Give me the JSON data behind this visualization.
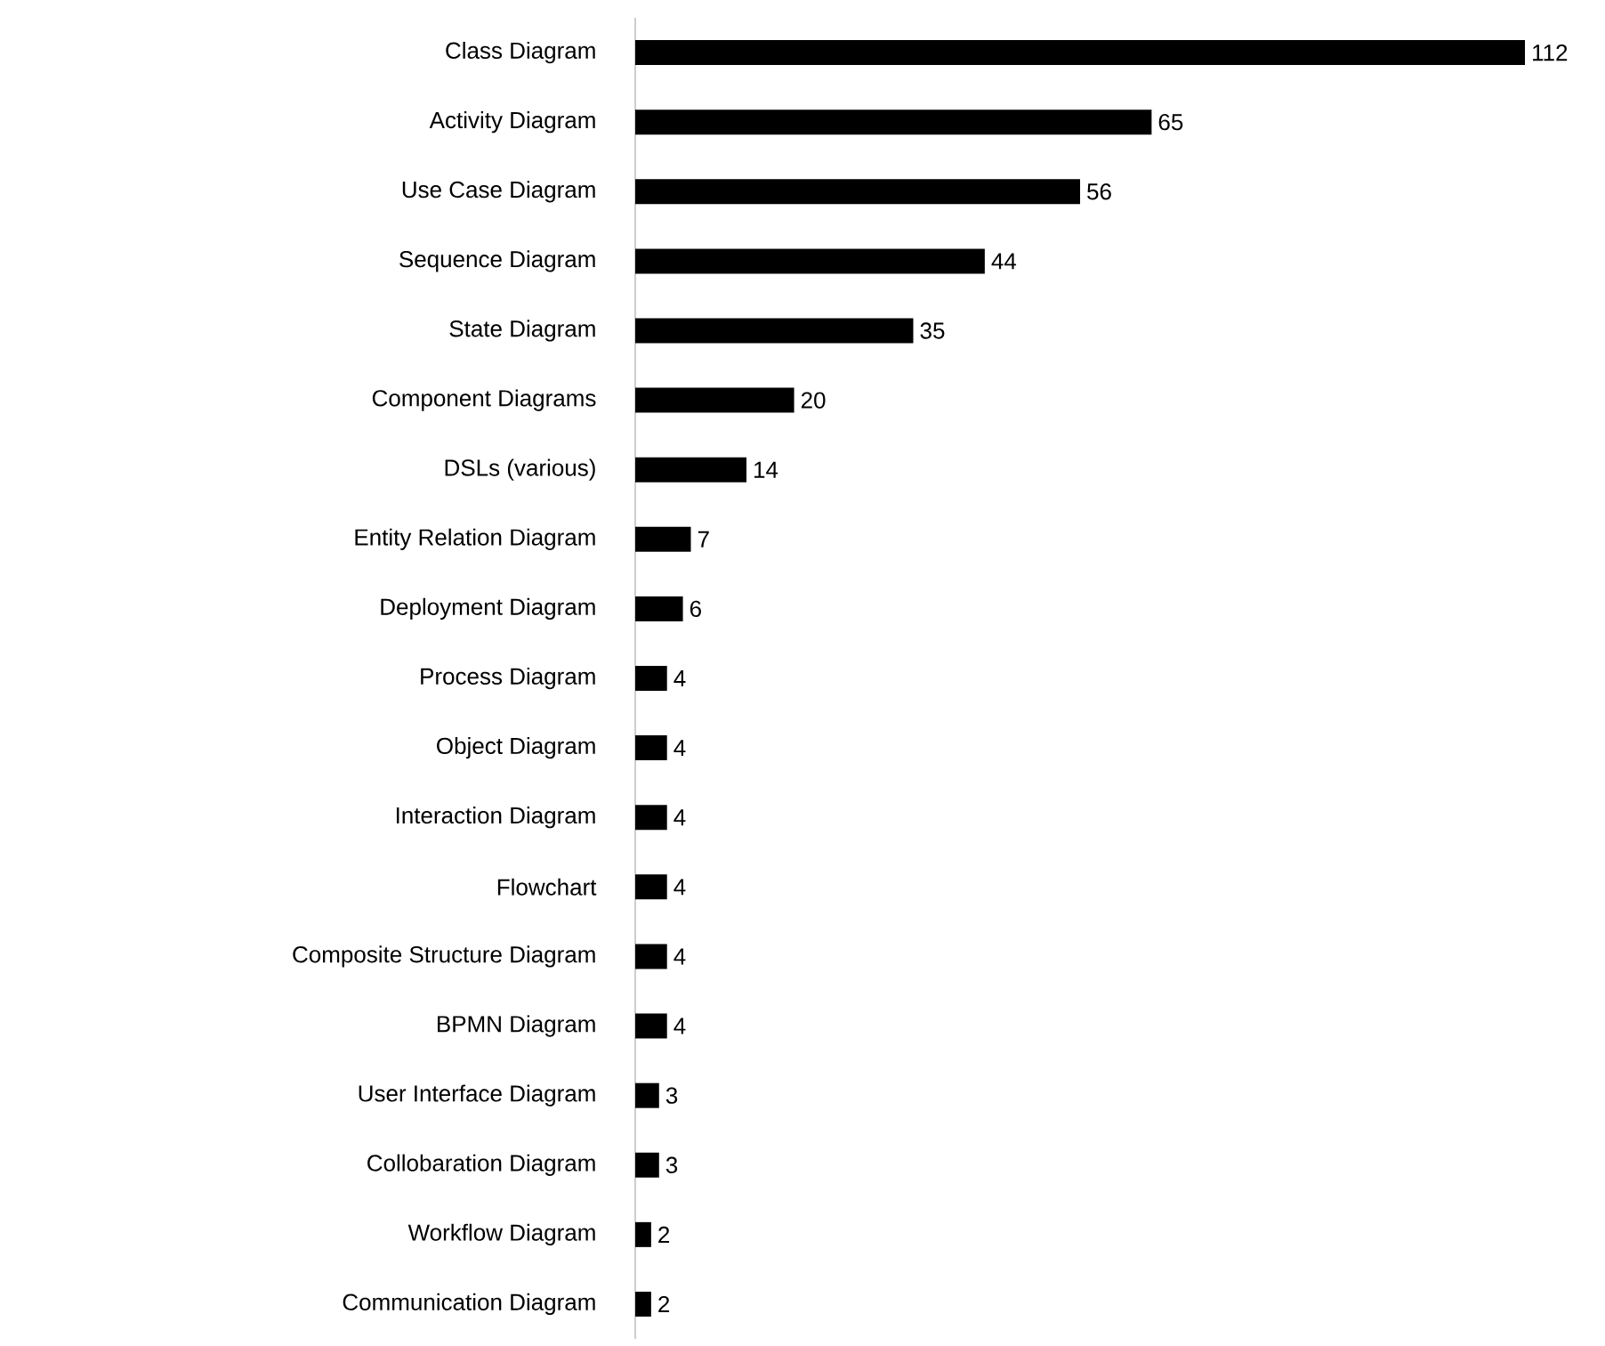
{
  "chart_data": {
    "type": "bar",
    "orientation": "horizontal",
    "color": "#000000",
    "data_labels": true,
    "categories": [
      "Class Diagram",
      "Activity Diagram",
      "Use Case Diagram",
      "Sequence Diagram",
      "State Diagram",
      "Component Diagrams",
      "DSLs (various)",
      "Entity Relation Diagram",
      "Deployment Diagram",
      "Process Diagram",
      "Object Diagram",
      "Interaction Diagram",
      "Flowchart",
      "Composite Structure Diagram",
      "BPMN Diagram",
      "User Interface Diagram",
      "Collobaration Diagram",
      "Workflow Diagram",
      "Communication Diagram"
    ],
    "values": [
      112,
      65,
      56,
      44,
      35,
      20,
      14,
      7,
      6,
      4,
      4,
      4,
      4,
      4,
      4,
      3,
      3,
      2,
      2
    ]
  }
}
